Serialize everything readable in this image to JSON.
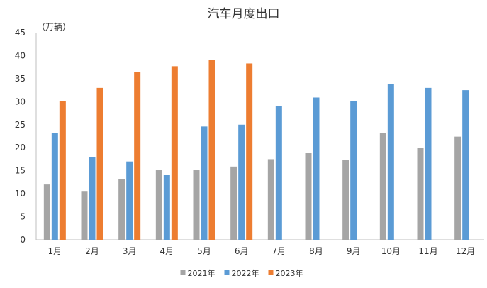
{
  "chart_data": {
    "type": "bar",
    "title": "汽车月度出口",
    "ylabel": "（万辆）",
    "xlabel": "",
    "ylim": [
      0,
      45
    ],
    "yticks": [
      0,
      5,
      10,
      15,
      20,
      25,
      30,
      35,
      40,
      45
    ],
    "categories": [
      "1月",
      "2月",
      "3月",
      "4月",
      "5月",
      "6月",
      "7月",
      "8月",
      "9月",
      "10月",
      "11月",
      "12月"
    ],
    "series": [
      {
        "name": "2021年",
        "color": "#a5a5a5",
        "values": [
          12.0,
          10.6,
          13.2,
          15.1,
          15.1,
          15.9,
          17.5,
          18.8,
          17.4,
          23.2,
          20.0,
          22.4
        ]
      },
      {
        "name": "2022年",
        "color": "#5b9bd5",
        "values": [
          23.2,
          18.0,
          17.0,
          14.1,
          24.6,
          25.0,
          29.1,
          30.9,
          30.2,
          33.9,
          33.0,
          32.5
        ]
      },
      {
        "name": "2023年",
        "color": "#ed7d31",
        "values": [
          30.2,
          33.0,
          36.5,
          37.7,
          39.0,
          38.3,
          null,
          null,
          null,
          null,
          null,
          null
        ]
      }
    ],
    "grid": false,
    "legend": "bottom-center"
  }
}
